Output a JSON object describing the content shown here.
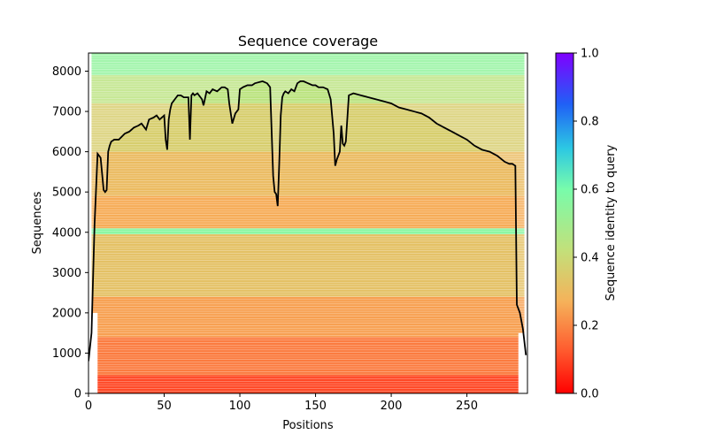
{
  "chart_data": {
    "type": "heatmap",
    "title": "Sequence coverage",
    "xlabel": "Positions",
    "ylabel": "Sequences",
    "xlim": [
      0,
      290
    ],
    "ylim": [
      0,
      8450
    ],
    "xticks": [
      0,
      50,
      100,
      150,
      200,
      250
    ],
    "yticks": [
      0,
      1000,
      2000,
      3000,
      4000,
      5000,
      6000,
      7000,
      8000
    ],
    "colorbar": {
      "label": "Sequence identity to query",
      "range": [
        0.0,
        1.0
      ],
      "ticks": [
        "0.0",
        "0.2",
        "0.4",
        "0.6",
        "0.8",
        "1.0"
      ],
      "colors": [
        "#ff0000",
        "#ff5a2e",
        "#f5b25a",
        "#c3e07a",
        "#78fcab",
        "#2cc8e3",
        "#2060f6",
        "#8000ff"
      ]
    },
    "identity_bands": [
      {
        "from": 0,
        "to": 450,
        "identity": 0.1
      },
      {
        "from": 450,
        "to": 1400,
        "identity": 0.18
      },
      {
        "from": 1400,
        "to": 2400,
        "identity": 0.24
      },
      {
        "from": 2400,
        "to": 3950,
        "identity": 0.32
      },
      {
        "from": 3950,
        "to": 4100,
        "identity": 0.56
      },
      {
        "from": 4100,
        "to": 4900,
        "identity": 0.26
      },
      {
        "from": 4900,
        "to": 6000,
        "identity": 0.3
      },
      {
        "from": 6000,
        "to": 7200,
        "identity": 0.36
      },
      {
        "from": 7200,
        "to": 7900,
        "identity": 0.44
      },
      {
        "from": 7900,
        "to": 8450,
        "identity": 0.54
      }
    ],
    "coverage_line": {
      "name": "coverage",
      "color": "#000000",
      "x": [
        0,
        2,
        4,
        6,
        7,
        8,
        10,
        11,
        12,
        13,
        14,
        15,
        17,
        20,
        24,
        27,
        30,
        33,
        35,
        38,
        40,
        43,
        45,
        47,
        50,
        51,
        52,
        53,
        54,
        55,
        56,
        57,
        58,
        59,
        61,
        63,
        66,
        67,
        68,
        69,
        70,
        72,
        74,
        75,
        76,
        78,
        80,
        82,
        85,
        88,
        90,
        92,
        93,
        95,
        97,
        99,
        100,
        102,
        105,
        108,
        110,
        115,
        118,
        120,
        121,
        122,
        123,
        124,
        125,
        126,
        127,
        128,
        129,
        130,
        132,
        134,
        136,
        138,
        140,
        142,
        145,
        148,
        150,
        152,
        155,
        158,
        160,
        162,
        163,
        164,
        165,
        166,
        167,
        168,
        169,
        170,
        172,
        175,
        180,
        185,
        190,
        195,
        200,
        205,
        210,
        215,
        220,
        225,
        230,
        235,
        240,
        245,
        250,
        255,
        260,
        265,
        270,
        275,
        278,
        280,
        282,
        283,
        284,
        285,
        287,
        289
      ],
      "y": [
        800,
        1500,
        4200,
        5950,
        5900,
        5850,
        5050,
        5000,
        5050,
        6000,
        6150,
        6250,
        6300,
        6300,
        6450,
        6500,
        6600,
        6650,
        6700,
        6550,
        6800,
        6850,
        6900,
        6800,
        6900,
        6300,
        6050,
        6800,
        7050,
        7200,
        7250,
        7300,
        7350,
        7400,
        7400,
        7350,
        7350,
        6300,
        7400,
        7450,
        7400,
        7450,
        7350,
        7300,
        7150,
        7500,
        7450,
        7550,
        7500,
        7600,
        7600,
        7550,
        7200,
        6700,
        6950,
        7050,
        7550,
        7600,
        7650,
        7650,
        7700,
        7750,
        7700,
        7600,
        6500,
        5400,
        5000,
        4950,
        4650,
        5700,
        6900,
        7350,
        7450,
        7500,
        7450,
        7550,
        7500,
        7700,
        7750,
        7750,
        7700,
        7650,
        7650,
        7600,
        7600,
        7550,
        7300,
        6450,
        5650,
        5800,
        5900,
        6000,
        6650,
        6200,
        6150,
        6250,
        7400,
        7450,
        7400,
        7350,
        7300,
        7250,
        7200,
        7100,
        7050,
        7000,
        6950,
        6850,
        6700,
        6600,
        6500,
        6400,
        6300,
        6150,
        6050,
        6000,
        5900,
        5750,
        5700,
        5700,
        5650,
        2200,
        2100,
        2000,
        1600,
        950
      ]
    }
  }
}
